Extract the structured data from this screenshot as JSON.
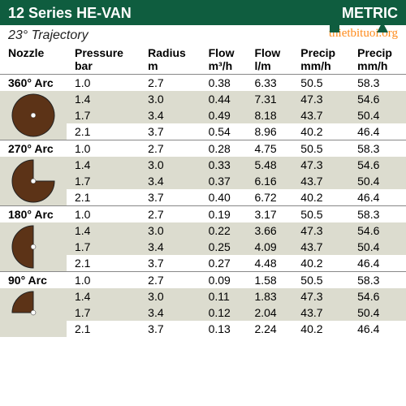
{
  "header": {
    "title": "12 Series HE-VAN",
    "unit": "METRIC"
  },
  "trajectory": "23° Trajectory",
  "watermark": "thietbituoi.org",
  "columns": [
    {
      "l1": "Nozzle",
      "l2": ""
    },
    {
      "l1": "Pressure",
      "l2": "bar"
    },
    {
      "l1": "Radius",
      "l2": "m"
    },
    {
      "l1": "Flow",
      "l2": "m³/h"
    },
    {
      "l1": "Flow",
      "l2": "l/m"
    },
    {
      "l1": "Precip",
      "l2": "mm/h"
    },
    {
      "l1": "Precip",
      "l2": "mm/h"
    }
  ],
  "arc_fill": "#5c3317",
  "arc_stroke": "#222",
  "arc_dot": "#fff",
  "groups": [
    {
      "label": "360° Arc",
      "start": 0,
      "end": 360,
      "rows": [
        {
          "pressure": "1.0",
          "radius": "2.7",
          "flow_m3h": "0.38",
          "flow_lm": "6.33",
          "precip1": "50.5",
          "precip2": "58.3"
        },
        {
          "pressure": "1.4",
          "radius": "3.0",
          "flow_m3h": "0.44",
          "flow_lm": "7.31",
          "precip1": "47.3",
          "precip2": "54.6"
        },
        {
          "pressure": "1.7",
          "radius": "3.4",
          "flow_m3h": "0.49",
          "flow_lm": "8.18",
          "precip1": "43.7",
          "precip2": "50.4"
        },
        {
          "pressure": "2.1",
          "radius": "3.7",
          "flow_m3h": "0.54",
          "flow_lm": "8.96",
          "precip1": "40.2",
          "precip2": "46.4"
        }
      ]
    },
    {
      "label": "270° Arc",
      "start": 90,
      "end": 360,
      "rows": [
        {
          "pressure": "1.0",
          "radius": "2.7",
          "flow_m3h": "0.28",
          "flow_lm": "4.75",
          "precip1": "50.5",
          "precip2": "58.3"
        },
        {
          "pressure": "1.4",
          "radius": "3.0",
          "flow_m3h": "0.33",
          "flow_lm": "5.48",
          "precip1": "47.3",
          "precip2": "54.6"
        },
        {
          "pressure": "1.7",
          "radius": "3.4",
          "flow_m3h": "0.37",
          "flow_lm": "6.16",
          "precip1": "43.7",
          "precip2": "50.4"
        },
        {
          "pressure": "2.1",
          "radius": "3.7",
          "flow_m3h": "0.40",
          "flow_lm": "6.72",
          "precip1": "40.2",
          "precip2": "46.4"
        }
      ]
    },
    {
      "label": "180° Arc",
      "start": 180,
      "end": 360,
      "rows": [
        {
          "pressure": "1.0",
          "radius": "2.7",
          "flow_m3h": "0.19",
          "flow_lm": "3.17",
          "precip1": "50.5",
          "precip2": "58.3"
        },
        {
          "pressure": "1.4",
          "radius": "3.0",
          "flow_m3h": "0.22",
          "flow_lm": "3.66",
          "precip1": "47.3",
          "precip2": "54.6"
        },
        {
          "pressure": "1.7",
          "radius": "3.4",
          "flow_m3h": "0.25",
          "flow_lm": "4.09",
          "precip1": "43.7",
          "precip2": "50.4"
        },
        {
          "pressure": "2.1",
          "radius": "3.7",
          "flow_m3h": "0.27",
          "flow_lm": "4.48",
          "precip1": "40.2",
          "precip2": "46.4"
        }
      ]
    },
    {
      "label": "90° Arc",
      "start": 270,
      "end": 360,
      "rows": [
        {
          "pressure": "1.0",
          "radius": "2.7",
          "flow_m3h": "0.09",
          "flow_lm": "1.58",
          "precip1": "50.5",
          "precip2": "58.3"
        },
        {
          "pressure": "1.4",
          "radius": "3.0",
          "flow_m3h": "0.11",
          "flow_lm": "1.83",
          "precip1": "47.3",
          "precip2": "54.6"
        },
        {
          "pressure": "1.7",
          "radius": "3.4",
          "flow_m3h": "0.12",
          "flow_lm": "2.04",
          "precip1": "43.7",
          "precip2": "50.4"
        },
        {
          "pressure": "2.1",
          "radius": "3.7",
          "flow_m3h": "0.13",
          "flow_lm": "2.24",
          "precip1": "40.2",
          "precip2": "46.4"
        }
      ]
    }
  ]
}
